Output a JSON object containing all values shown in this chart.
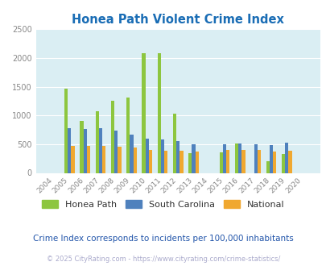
{
  "title": "Honea Path Violent Crime Index",
  "subtitle": "Crime Index corresponds to incidents per 100,000 inhabitants",
  "footer": "© 2025 CityRating.com - https://www.cityrating.com/crime-statistics/",
  "years": [
    2004,
    2005,
    2006,
    2007,
    2008,
    2009,
    2010,
    2011,
    2012,
    2013,
    2014,
    2015,
    2016,
    2017,
    2018,
    2019,
    2020
  ],
  "honea_path": [
    0,
    1470,
    910,
    1080,
    1260,
    1305,
    2080,
    2080,
    1030,
    340,
    0,
    355,
    515,
    0,
    210,
    330,
    0
  ],
  "south_carolina": [
    0,
    775,
    770,
    780,
    730,
    670,
    600,
    580,
    560,
    500,
    0,
    500,
    510,
    500,
    490,
    520,
    0
  ],
  "national": [
    0,
    470,
    470,
    470,
    455,
    435,
    405,
    390,
    390,
    370,
    0,
    395,
    400,
    395,
    370,
    390,
    0
  ],
  "bar_colors": {
    "honea_path": "#8dc63f",
    "south_carolina": "#4f81bd",
    "national": "#f0a830"
  },
  "bg_color": "#daeef3",
  "ylim": [
    0,
    2500
  ],
  "yticks": [
    0,
    500,
    1000,
    1500,
    2000,
    2500
  ],
  "legend_labels": [
    "Honea Path",
    "South Carolina",
    "National"
  ],
  "title_color": "#1a6db5",
  "subtitle_color": "#2255aa",
  "footer_color": "#aaaacc"
}
